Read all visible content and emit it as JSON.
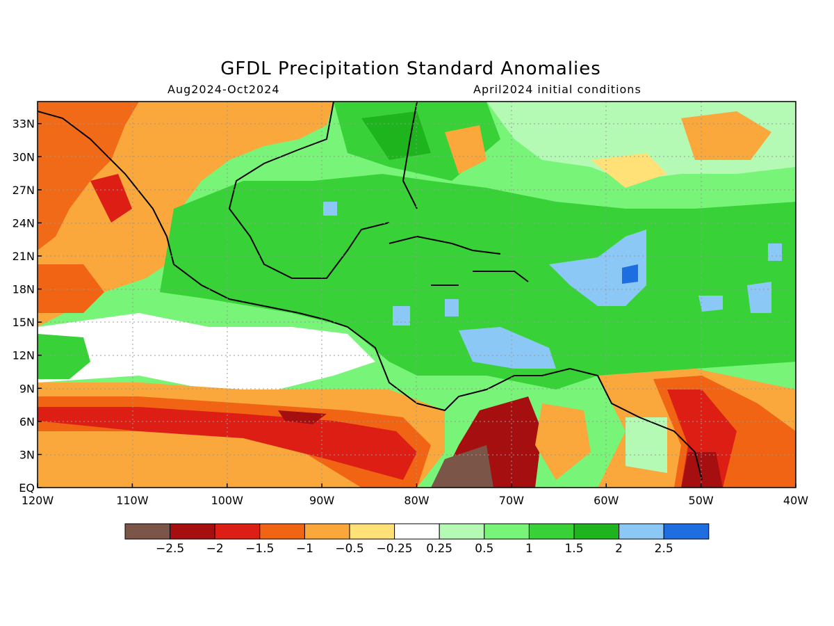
{
  "title": "GFDL Precipitation Standard Anomalies",
  "subtitle_left": "Aug2024-Oct2024",
  "subtitle_right": "April2024 initial conditions",
  "lat_ticks": [
    "EQ",
    "3N",
    "6N",
    "9N",
    "12N",
    "15N",
    "18N",
    "21N",
    "24N",
    "27N",
    "30N",
    "33N"
  ],
  "lon_ticks": [
    "120W",
    "110W",
    "100W",
    "90W",
    "80W",
    "70W",
    "60W",
    "50W",
    "40W"
  ],
  "extent": {
    "lon": [
      -120,
      -40
    ],
    "lat": [
      0,
      35
    ]
  },
  "colorbar": {
    "colors": [
      "#7a5548",
      "#a50f0f",
      "#dc1e14",
      "#f06414",
      "#faa73c",
      "#ffe178",
      "#ffffff",
      "#b4fab4",
      "#78f578",
      "#38d238",
      "#1eb41e",
      "#8cc8f5",
      "#1e6ee1"
    ],
    "labels": [
      "-2.5",
      "-2",
      "-1.5",
      "-1",
      "-0.5",
      "-0.25",
      "0.25",
      "0.5",
      "1",
      "1.5",
      "2",
      "2.5"
    ]
  }
}
